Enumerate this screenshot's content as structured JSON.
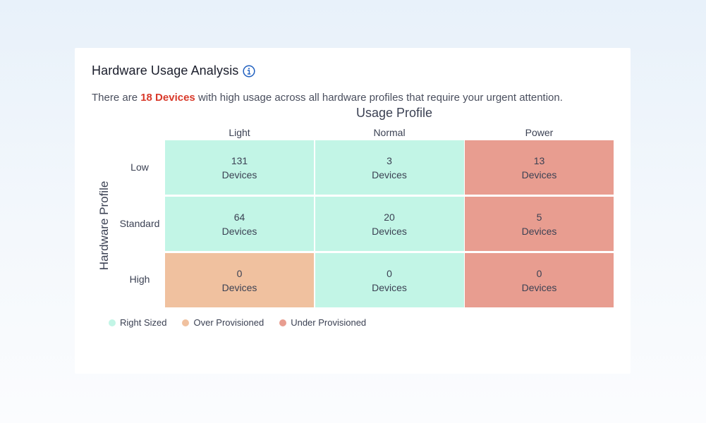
{
  "card": {
    "title": "Hardware Usage Analysis",
    "info_icon": "info-circle-icon",
    "summary": {
      "prefix": "There are ",
      "highlight": "18 Devices",
      "suffix": " with high usage across all hardware profiles that require your urgent attention."
    }
  },
  "heatmap": {
    "x_title": "Usage Profile",
    "y_title": "Hardware Profile",
    "columns": [
      "Light",
      "Normal",
      "Power"
    ],
    "rows": [
      "Low",
      "Standard",
      "High"
    ],
    "unit": "Devices",
    "cells": [
      [
        {
          "value": "131",
          "status": "right_sized"
        },
        {
          "value": "3",
          "status": "right_sized"
        },
        {
          "value": "13",
          "status": "under_provisioned"
        }
      ],
      [
        {
          "value": "64",
          "status": "right_sized"
        },
        {
          "value": "20",
          "status": "right_sized"
        },
        {
          "value": "5",
          "status": "under_provisioned"
        }
      ],
      [
        {
          "value": "0",
          "status": "over_provisioned"
        },
        {
          "value": "0",
          "status": "right_sized"
        },
        {
          "value": "0",
          "status": "under_provisioned"
        }
      ]
    ]
  },
  "legend": [
    {
      "key": "right_sized",
      "label": "Right Sized"
    },
    {
      "key": "over_provisioned",
      "label": "Over Provisioned"
    },
    {
      "key": "under_provisioned",
      "label": "Under Provisioned"
    }
  ],
  "colors": {
    "right_sized": "#c2f5e6",
    "over_provisioned": "#f0c19f",
    "under_provisioned": "#e89d90",
    "highlight": "#d93a2b",
    "info_icon": "#1f5fbf"
  }
}
